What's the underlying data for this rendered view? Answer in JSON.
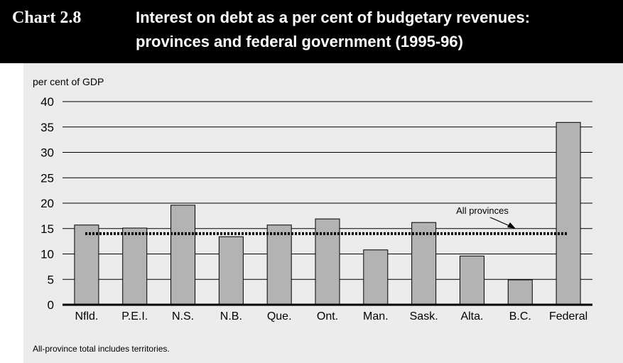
{
  "header": {
    "chart_label": "Chart 2.8",
    "title_line1": "Interest on debt as a per cent of budgetary revenues:",
    "title_line2": "provinces and federal government (1995-96)"
  },
  "chart_data": {
    "type": "bar",
    "title": "Interest on debt as a per cent of budgetary revenues: provinces and federal government (1995-96)",
    "ylabel": "per cent of GDP",
    "xlabel": "",
    "ylim": [
      0,
      40
    ],
    "yticks": [
      0,
      5,
      10,
      15,
      20,
      25,
      30,
      35,
      40
    ],
    "grid": true,
    "categories": [
      "Nfld.",
      "P.E.I.",
      "N.S.",
      "N.B.",
      "Que.",
      "Ont.",
      "Man.",
      "Sask.",
      "Alta.",
      "B.C.",
      "Federal"
    ],
    "values": [
      15.7,
      15.1,
      19.6,
      13.4,
      15.7,
      16.9,
      10.8,
      16.2,
      9.6,
      4.9,
      35.9
    ],
    "bar_color": "#b3b3b3",
    "reference_line": {
      "label": "All provinces",
      "value": 14
    }
  },
  "footnote": "All-province total includes territories."
}
